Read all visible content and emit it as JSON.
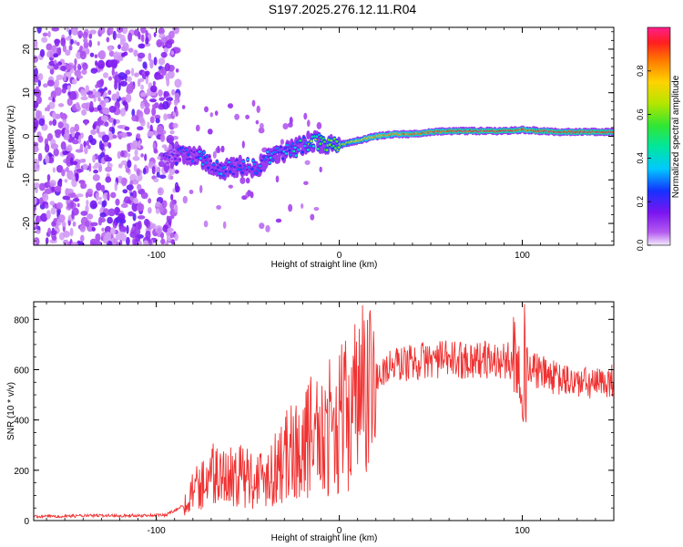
{
  "title": "S197.2025.276.12.11.R04",
  "colors": {
    "snr_line": "#f03232",
    "axis": "#000000",
    "background": "#ffffff"
  },
  "chart_data": [
    {
      "type": "heatmap",
      "title": "S197.2025.276.12.11.R04",
      "xlabel": "Height of straight line (km)",
      "ylabel": "Frequency (Hz)",
      "xlim": [
        -167,
        150
      ],
      "ylim": [
        -25,
        25
      ],
      "x_ticks": [
        -100,
        0,
        100
      ],
      "x_tick_labels": [
        "-100",
        "0",
        "100"
      ],
      "y_ticks": [
        -20,
        -10,
        0,
        10,
        20
      ],
      "y_tick_labels": [
        "-20",
        "-10",
        "0",
        "10",
        "20"
      ],
      "colorbar": {
        "label": "Normalized spectral amplitude",
        "range": [
          0,
          1
        ],
        "ticks": [
          0.0,
          0.2,
          0.4,
          0.6,
          0.8
        ],
        "tick_labels": [
          "0.0",
          "0.2",
          "0.4",
          "0.6",
          "0.8"
        ]
      },
      "ridge": {
        "description_free": true,
        "height_km": [
          -95,
          -85,
          -75,
          -65,
          -55,
          -45,
          -35,
          -25,
          -15,
          -5,
          0,
          10,
          20,
          30,
          40,
          50,
          60,
          70,
          80,
          90,
          100,
          110,
          120,
          130,
          140,
          150
        ],
        "frequency_hz": [
          -6,
          -4,
          -5,
          -8,
          -7,
          -7,
          -4,
          -3,
          -1,
          -2,
          -2,
          -1,
          0,
          0.5,
          0.5,
          1,
          1.2,
          1.2,
          1.2,
          1.2,
          1.5,
          1.2,
          1,
          1,
          1,
          1
        ],
        "amplitude": [
          0.15,
          0.25,
          0.3,
          0.3,
          0.3,
          0.3,
          0.35,
          0.4,
          0.55,
          0.6,
          0.65,
          0.75,
          0.8,
          0.85,
          0.9,
          0.9,
          0.95,
          0.95,
          0.95,
          0.95,
          0.9,
          0.95,
          0.95,
          0.95,
          0.95,
          0.95
        ]
      }
    },
    {
      "type": "line",
      "xlabel": "Height of straight line (km)",
      "ylabel": "SNR (10 * v/v)",
      "xlim": [
        -167,
        150
      ],
      "ylim": [
        0,
        870
      ],
      "x_ticks": [
        -100,
        0,
        100
      ],
      "x_tick_labels": [
        "-100",
        "0",
        "100"
      ],
      "y_ticks": [
        0,
        200,
        400,
        600,
        800
      ],
      "y_tick_labels": [
        "0",
        "200",
        "400",
        "600",
        "800"
      ],
      "series": [
        {
          "name": "SNR",
          "x": [
            -167,
            -150,
            -130,
            -110,
            -95,
            -85,
            -80,
            -75,
            -70,
            -65,
            -60,
            -55,
            -50,
            -45,
            -40,
            -35,
            -30,
            -25,
            -20,
            -15,
            -10,
            -5,
            0,
            5,
            10,
            15,
            20,
            25,
            30,
            40,
            50,
            60,
            70,
            80,
            90,
            95,
            98,
            100,
            102,
            105,
            110,
            120,
            130,
            140,
            150
          ],
          "y": [
            15,
            18,
            20,
            20,
            22,
            60,
            120,
            160,
            200,
            180,
            200,
            180,
            190,
            170,
            190,
            230,
            260,
            290,
            320,
            360,
            380,
            390,
            420,
            450,
            500,
            540,
            570,
            600,
            620,
            630,
            640,
            640,
            640,
            640,
            630,
            640,
            700,
            650,
            600,
            600,
            590,
            560,
            550,
            540,
            560
          ]
        }
      ]
    }
  ]
}
